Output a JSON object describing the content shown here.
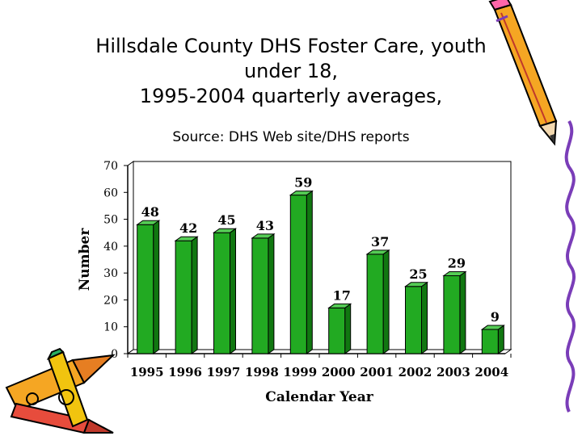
{
  "title_lines": [
    "Hillsdale County DHS Foster Care, youth",
    "under 18,",
    "1995-2004 quarterly averages,"
  ],
  "subtitle": "Source: DHS Web site/DHS reports",
  "chart_data": {
    "type": "bar",
    "categories": [
      "1995",
      "1996",
      "1997",
      "1998",
      "1999",
      "2000",
      "2001",
      "2002",
      "2003",
      "2004"
    ],
    "values": [
      48,
      42,
      45,
      43,
      59,
      17,
      37,
      25,
      29,
      9
    ],
    "xlabel": "Calendar Year",
    "ylabel": "Number",
    "ylim": [
      0,
      70
    ],
    "yticks": [
      0,
      10,
      20,
      30,
      40,
      50,
      60,
      70
    ],
    "data_labels": true,
    "grid": false,
    "bar_color": "#22aa22"
  },
  "decorations": [
    "pencil-icon",
    "crayons-icon",
    "squiggle-border"
  ]
}
